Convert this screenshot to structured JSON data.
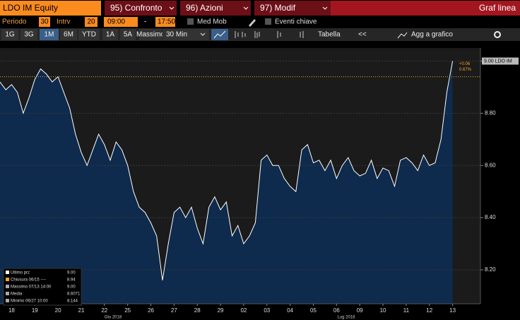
{
  "header": {
    "security": "LDO IM Equity",
    "menus": [
      "95) Confronto",
      "96) Azioni",
      "97) Modif"
    ],
    "view": "Graf linea"
  },
  "settings": {
    "period_label": "Periodo",
    "period": "30",
    "interval_label": "Intrv",
    "interval": "20",
    "start": "09:00",
    "separator": "-",
    "end": "17:50",
    "moving_avg": "Med Mob",
    "key_events": "Eventi chiave"
  },
  "toolbar": {
    "ranges": [
      "1G",
      "3G",
      "1M",
      "6M",
      "YTD",
      "1A",
      "5A",
      "Massimo"
    ],
    "selected_range": 2,
    "bar_size": "30 Min",
    "table": "Tabella",
    "back": "<<",
    "add": "Agg a grafico"
  },
  "chart_data": {
    "type": "area",
    "series": [
      {
        "name": "LDO IM",
        "color": "#ffffff",
        "fill": "#0e2a4d",
        "x": [
          0,
          0.25,
          0.5,
          0.75,
          1,
          1.25,
          1.5,
          1.75,
          2,
          2.25,
          2.5,
          2.75,
          3,
          3.25,
          3.5,
          3.75,
          4,
          4.25,
          4.5,
          4.75,
          5,
          5.25,
          5.5,
          5.75,
          6,
          6.25,
          6.5,
          6.75,
          7,
          7.25,
          7.5,
          7.75,
          8,
          8.25,
          8.5,
          8.75,
          9,
          9.25,
          9.5,
          9.75,
          10,
          10.25,
          10.5,
          10.75,
          11,
          11.25,
          11.5,
          11.75,
          12,
          12.25,
          12.5,
          12.75,
          13,
          13.25,
          13.5,
          13.75,
          14,
          14.25,
          14.5,
          14.75,
          15,
          15.25,
          15.5,
          15.75,
          16,
          16.25,
          16.5,
          16.75,
          17,
          17.25,
          17.5,
          17.75,
          18,
          18.25,
          18.5,
          18.75,
          19,
          19.25,
          19.5
        ],
        "values": [
          8.92,
          8.89,
          8.91,
          8.88,
          8.8,
          8.86,
          8.93,
          8.97,
          8.95,
          8.92,
          8.94,
          8.88,
          8.82,
          8.72,
          8.65,
          8.6,
          8.66,
          8.72,
          8.68,
          8.62,
          8.69,
          8.66,
          8.6,
          8.5,
          8.44,
          8.42,
          8.38,
          8.33,
          8.16,
          8.3,
          8.42,
          8.44,
          8.4,
          8.44,
          8.36,
          8.3,
          8.44,
          8.48,
          8.43,
          8.46,
          8.33,
          8.37,
          8.3,
          8.33,
          8.38,
          8.62,
          8.64,
          8.6,
          8.6,
          8.55,
          8.52,
          8.5,
          8.66,
          8.68,
          8.61,
          8.62,
          8.58,
          8.62,
          8.55,
          8.6,
          8.63,
          8.58,
          8.56,
          8.57,
          8.62,
          8.55,
          8.59,
          8.58,
          8.52,
          8.62,
          8.63,
          8.61,
          8.58,
          8.64,
          8.6,
          8.61,
          8.7,
          8.88,
          9.0
        ]
      }
    ],
    "xlim": [
      0,
      20.7
    ],
    "xticks": [
      {
        "value": 0.5,
        "label": "18"
      },
      {
        "value": 1.5,
        "label": "19"
      },
      {
        "value": 2.5,
        "label": "20"
      },
      {
        "value": 3.5,
        "label": "21"
      },
      {
        "value": 4.5,
        "label": "22"
      },
      {
        "value": 5.5,
        "label": "25"
      },
      {
        "value": 6.5,
        "label": "26"
      },
      {
        "value": 7.5,
        "label": "27"
      },
      {
        "value": 8.5,
        "label": "28"
      },
      {
        "value": 9.5,
        "label": "29"
      },
      {
        "value": 10.5,
        "label": "02"
      },
      {
        "value": 11.5,
        "label": "03"
      },
      {
        "value": 12.5,
        "label": "04"
      },
      {
        "value": 13.5,
        "label": "05"
      },
      {
        "value": 14.5,
        "label": "06"
      },
      {
        "value": 15.5,
        "label": "09"
      },
      {
        "value": 16.5,
        "label": "10"
      },
      {
        "value": 17.5,
        "label": "11"
      },
      {
        "value": 18.5,
        "label": "12"
      },
      {
        "value": 19.5,
        "label": "13"
      }
    ],
    "x_groups": [
      "Giu 2018",
      "Lug 2018"
    ],
    "ylim": [
      8.07,
      9.05
    ],
    "yticks": [
      {
        "value": 8.2,
        "label": "8.20"
      },
      {
        "value": 8.4,
        "label": "8.40"
      },
      {
        "value": 8.6,
        "label": "8.60"
      },
      {
        "value": 8.8,
        "label": "8.80"
      },
      {
        "value": 9.0,
        "label": "9.00"
      }
    ],
    "grid": true,
    "reference_line": {
      "value": 8.94,
      "color": "#f5a623"
    },
    "last_tag": "9.00 LDO IM",
    "change": "+0.06",
    "change_pct": "0.67%",
    "legend": [
      {
        "label": "Ultimo prz",
        "value": "9.00"
      },
      {
        "label": "Chiusura 06/15 ----",
        "value": "8.94"
      },
      {
        "label": "Massimo 07/13 14:00",
        "value": "9.00"
      },
      {
        "label": "Media",
        "value": "8.6071"
      },
      {
        "label": "Minimo 06/27 10:00",
        "value": "8.144"
      }
    ]
  }
}
